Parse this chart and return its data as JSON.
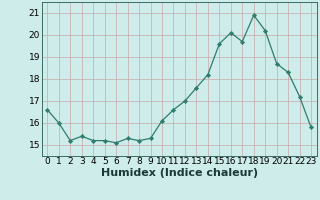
{
  "x": [
    0,
    1,
    2,
    3,
    4,
    5,
    6,
    7,
    8,
    9,
    10,
    11,
    12,
    13,
    14,
    15,
    16,
    17,
    18,
    19,
    20,
    21,
    22,
    23
  ],
  "y": [
    16.6,
    16.0,
    15.2,
    15.4,
    15.2,
    15.2,
    15.1,
    15.3,
    15.2,
    15.3,
    16.1,
    16.6,
    17.0,
    17.6,
    18.2,
    19.6,
    20.1,
    19.7,
    20.9,
    20.2,
    18.7,
    18.3,
    17.2,
    15.8
  ],
  "line_color": "#2e7d6e",
  "marker": "D",
  "marker_size": 2.2,
  "bg_color": "#ceecea",
  "grid_color": "#c8a8a8",
  "xlabel": "Humidex (Indice chaleur)",
  "ylim": [
    14.5,
    21.5
  ],
  "xlim": [
    -0.5,
    23.5
  ],
  "yticks": [
    15,
    16,
    17,
    18,
    19,
    20,
    21
  ],
  "xticks": [
    0,
    1,
    2,
    3,
    4,
    5,
    6,
    7,
    8,
    9,
    10,
    11,
    12,
    13,
    14,
    15,
    16,
    17,
    18,
    19,
    20,
    21,
    22,
    23
  ],
  "tick_fontsize": 6.5,
  "xlabel_fontsize": 8.0,
  "linewidth": 0.9
}
